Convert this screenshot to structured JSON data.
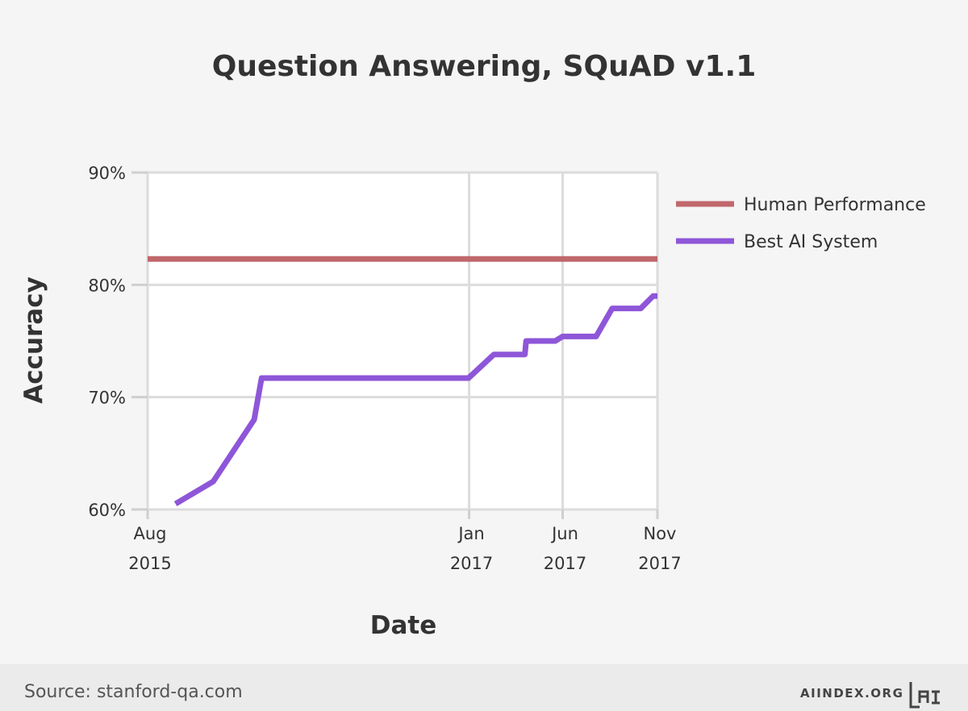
{
  "chart_data": {
    "type": "line",
    "title": "Question Answering, SQuAD v1.1",
    "xlabel": "Date",
    "ylabel": "Accuracy",
    "x_ticks": [
      {
        "date": "2015-08-01",
        "line1": "Aug",
        "line2": "2015"
      },
      {
        "date": "2017-01-01",
        "line1": "Jan",
        "line2": "2017"
      },
      {
        "date": "2017-06-01",
        "line1": "Jun",
        "line2": "2017"
      },
      {
        "date": "2017-11-01",
        "line1": "Nov",
        "line2": "2017"
      }
    ],
    "y_ticks": [
      {
        "value": 60,
        "label": "60%"
      },
      {
        "value": 70,
        "label": "70%"
      },
      {
        "value": 80,
        "label": "80%"
      },
      {
        "value": 90,
        "label": "90%"
      }
    ],
    "xlim": [
      "2015-08-01",
      "2017-11-01"
    ],
    "ylim": [
      60,
      90
    ],
    "grid": true,
    "legend_position": "right",
    "series": [
      {
        "name": "Human Performance",
        "color": "#c0676b",
        "points": [
          [
            "2015-08-01",
            82.3
          ],
          [
            "2017-11-01",
            82.3
          ]
        ]
      },
      {
        "name": "Best AI System",
        "color": "#8e56d8",
        "points": [
          [
            "2015-09-15",
            60.5
          ],
          [
            "2015-11-15",
            62.5
          ],
          [
            "2016-01-20",
            68.0
          ],
          [
            "2016-02-01",
            71.7
          ],
          [
            "2016-12-31",
            71.7
          ],
          [
            "2017-02-10",
            73.8
          ],
          [
            "2017-04-01",
            73.8
          ],
          [
            "2017-04-03",
            75.0
          ],
          [
            "2017-05-20",
            75.0
          ],
          [
            "2017-06-01",
            75.4
          ],
          [
            "2017-07-25",
            75.4
          ],
          [
            "2017-08-20",
            77.9
          ],
          [
            "2017-10-05",
            77.9
          ],
          [
            "2017-10-25",
            79.0
          ],
          [
            "2017-11-01",
            79.0
          ]
        ]
      }
    ]
  },
  "footer": {
    "source": "Source: stanford-qa.com",
    "brand": "AIINDEX.ORG"
  }
}
